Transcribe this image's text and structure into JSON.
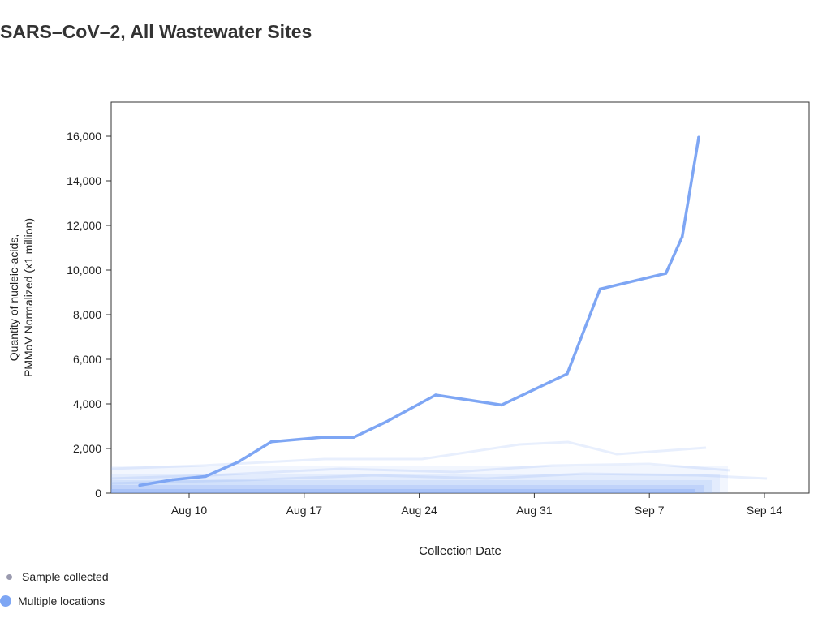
{
  "title": "SARS–CoV–2, All Wastewater Sites",
  "legend": {
    "sample_collected": "Sample collected",
    "multiple_locations": "Multiple locations",
    "sample_color": "#9a9aae",
    "multiple_color": "#7ea6f4"
  },
  "chart_data": {
    "type": "line",
    "xlabel": "Collection Date",
    "ylabel_line1": "Quantity of nucleic-acids,",
    "ylabel_line2": "PMMoV Normalized (x1 million)",
    "x_ticks": [
      "Aug 10",
      "Aug 17",
      "Aug 24",
      "Aug 31",
      "Sep 7",
      "Sep 14"
    ],
    "y_ticks": [
      "0",
      "2,000",
      "4,000",
      "6,000",
      "8,000",
      "10,000",
      "12,000",
      "14,000",
      "16,000"
    ],
    "ylim": [
      0,
      16500
    ],
    "grid": false,
    "series": [
      {
        "color": "#7ea6f4",
        "points": [
          [
            "Aug 7",
            350
          ],
          [
            "Aug 9",
            600
          ],
          [
            "Aug 11",
            750
          ],
          [
            "Aug 13",
            1400
          ],
          [
            "Aug 15",
            2300
          ],
          [
            "Aug 18",
            2500
          ],
          [
            "Aug 20",
            2500
          ],
          [
            "Aug 22",
            3200
          ],
          [
            "Aug 25",
            4400
          ],
          [
            "Aug 29",
            3950
          ],
          [
            "Sep 2",
            5350
          ],
          [
            "Sep 4",
            9150
          ],
          [
            "Sep 8",
            9850
          ],
          [
            "Sep 9",
            11500
          ],
          [
            "Sep 10",
            15950
          ]
        ]
      }
    ]
  }
}
